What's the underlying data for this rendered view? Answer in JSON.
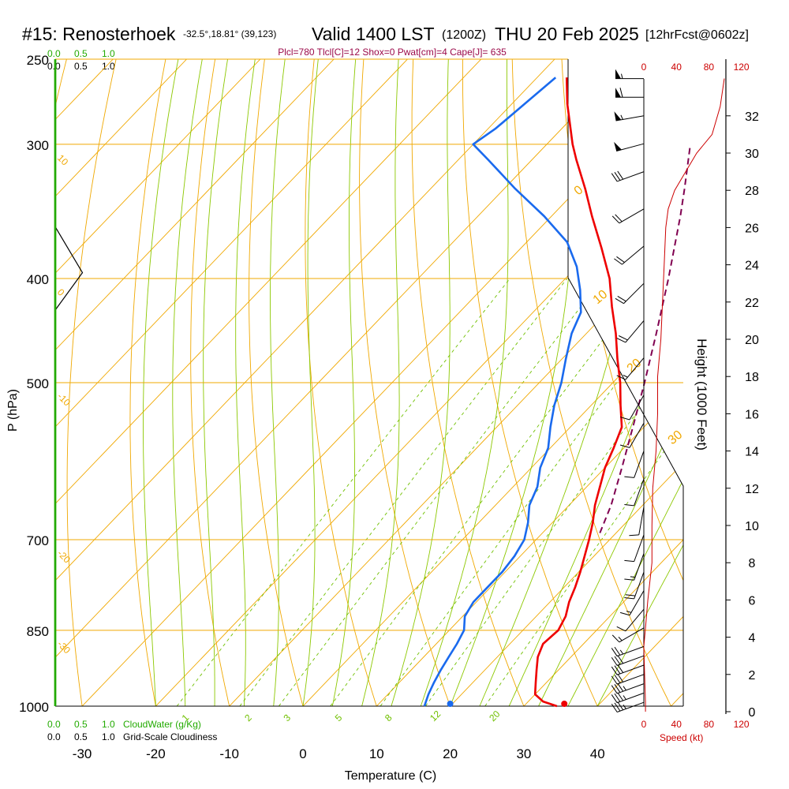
{
  "header": {
    "station": "#15: Renosterhoek",
    "location": "-32.5°,18.81° (39,123)",
    "valid": "Valid 1400 LST",
    "zulu": "(1200Z)",
    "date": "THU 20 Feb 2025",
    "forecast": "[12hrFcst@0602z]"
  },
  "indices_line": "Plcl=780 Tlcl[C]=12 Shox=0 Pwat[cm]=4 Cape[J]= 635",
  "scale_top_green": [
    "0.0",
    "0.5",
    "1.0"
  ],
  "scale_top_black": [
    "0.0",
    "0.5",
    "1.0"
  ],
  "cloudwater_legend": {
    "ticks": [
      "0.0",
      "0.5",
      "1.0"
    ],
    "label": "CloudWater (g/Kg)"
  },
  "cloudiness_legend": {
    "ticks": [
      "0.0",
      "0.5",
      "1.0"
    ],
    "label": "Grid-Scale Cloudiness"
  },
  "wind_speed_ticks": [
    "0",
    "40",
    "80",
    "120"
  ],
  "wind_speed_label": "Speed (kt)",
  "colors": {
    "temperature": "#ee0000",
    "dewpoint": "#1a6aee",
    "parcel": "#800050",
    "isotherm": "#f0a800",
    "dry_adiabat": "#f0a800",
    "moist_adiabat": "#8cc800",
    "mixing_ratio": "#70c000",
    "cloud": "#22aa00",
    "wind_speed": "#cc0000"
  },
  "chart_data": {
    "type": "line",
    "chart_kind": "skew-T log-P sounding",
    "xlabel": "Temperature (C)",
    "ylabel": "P (hPa)",
    "y2label": "Height (1000 Feet)",
    "x_ticks": [
      -30,
      -20,
      -10,
      0,
      10,
      20,
      30,
      40
    ],
    "p_ticks": [
      250,
      300,
      400,
      500,
      700,
      850,
      1000
    ],
    "height_ticks": [
      0,
      2,
      4,
      6,
      8,
      10,
      12,
      14,
      16,
      18,
      20,
      22,
      24,
      26,
      28,
      30,
      32
    ],
    "isotherm_labels": [
      "10",
      "0",
      "-10",
      "-20",
      "-30"
    ],
    "dry_adiabat_labels": [
      "0",
      "10",
      "20",
      "30"
    ],
    "mixing_ratio_labels": [
      "1",
      "2",
      "3",
      "5",
      "8",
      "12",
      "20"
    ],
    "series": [
      {
        "name": "Temperature",
        "points": [
          [
            1000,
            34.5
          ],
          [
            990,
            32.0
          ],
          [
            975,
            30.0
          ],
          [
            950,
            28.5
          ],
          [
            925,
            27.0
          ],
          [
            900,
            25.5
          ],
          [
            875,
            24.5
          ],
          [
            850,
            24.8
          ],
          [
            825,
            24.0
          ],
          [
            800,
            22.6
          ],
          [
            775,
            21.5
          ],
          [
            750,
            20.2
          ],
          [
            700,
            17.2
          ],
          [
            675,
            15.5
          ],
          [
            650,
            13.5
          ],
          [
            600,
            10.0
          ],
          [
            575,
            8.6
          ],
          [
            550,
            7.0
          ],
          [
            525,
            4.0
          ],
          [
            500,
            1.0
          ],
          [
            475,
            -2.5
          ],
          [
            450,
            -6.0
          ],
          [
            425,
            -10.0
          ],
          [
            400,
            -14.0
          ],
          [
            375,
            -19.0
          ],
          [
            350,
            -24.5
          ],
          [
            330,
            -29.0
          ],
          [
            310,
            -34.0
          ],
          [
            300,
            -36.5
          ],
          [
            275,
            -42.5
          ],
          [
            260,
            -46.0
          ]
        ]
      },
      {
        "name": "Dewpoint",
        "points": [
          [
            1000,
            16.5
          ],
          [
            975,
            15.5
          ],
          [
            950,
            14.7
          ],
          [
            925,
            14.0
          ],
          [
            900,
            13.4
          ],
          [
            875,
            12.8
          ],
          [
            850,
            12.0
          ],
          [
            825,
            10.3
          ],
          [
            800,
            9.6
          ],
          [
            775,
            9.6
          ],
          [
            750,
            9.6
          ],
          [
            725,
            9.2
          ],
          [
            700,
            8.4
          ],
          [
            675,
            6.7
          ],
          [
            650,
            4.6
          ],
          [
            625,
            3.3
          ],
          [
            600,
            1.2
          ],
          [
            575,
            -0.3
          ],
          [
            550,
            -2.7
          ],
          [
            525,
            -5.0
          ],
          [
            500,
            -7.0
          ],
          [
            475,
            -9.5
          ],
          [
            450,
            -12.0
          ],
          [
            430,
            -13.5
          ],
          [
            410,
            -16.5
          ],
          [
            390,
            -20.0
          ],
          [
            370,
            -24.5
          ],
          [
            350,
            -31.0
          ],
          [
            330,
            -38.5
          ],
          [
            310,
            -46.0
          ],
          [
            300,
            -50.0
          ],
          [
            290,
            -49.0
          ],
          [
            280,
            -48.5
          ],
          [
            260,
            -47.5
          ]
        ]
      },
      {
        "name": "Parcel",
        "points": [
          [
            690,
            17.8
          ],
          [
            650,
            15.7
          ],
          [
            600,
            12.3
          ],
          [
            550,
            8.5
          ],
          [
            500,
            4.3
          ],
          [
            450,
            -0.5
          ],
          [
            400,
            -6.0
          ],
          [
            350,
            -12.5
          ],
          [
            330,
            -15.5
          ],
          [
            300,
            -20.5
          ]
        ]
      }
    ],
    "surface_temperature": 35.5,
    "surface_dewpoint": 20.0,
    "wind_speed_axis": [
      0,
      120
    ],
    "wind_speed_profile": [
      [
        0.0,
        2
      ],
      [
        0.5,
        2
      ],
      [
        2.0,
        1
      ],
      [
        3.5,
        0
      ],
      [
        4.5,
        2
      ],
      [
        6.0,
        5
      ],
      [
        8.0,
        10
      ],
      [
        10.0,
        10
      ],
      [
        12.0,
        11
      ],
      [
        14.0,
        15
      ],
      [
        16.0,
        17
      ],
      [
        18.0,
        17
      ],
      [
        20.0,
        21
      ],
      [
        22.0,
        23
      ],
      [
        24.0,
        25
      ],
      [
        26.0,
        27
      ],
      [
        27.0,
        30
      ],
      [
        28.0,
        38
      ],
      [
        30.0,
        65
      ],
      [
        31.0,
        84
      ],
      [
        32.5,
        94
      ],
      [
        34.0,
        99
      ]
    ],
    "wind_barbs": [
      {
        "h": 0.5,
        "dir": 250,
        "spd": 35
      },
      {
        "h": 1.0,
        "dir": 250,
        "spd": 35
      },
      {
        "h": 1.5,
        "dir": 250,
        "spd": 35
      },
      {
        "h": 2.0,
        "dir": 250,
        "spd": 30
      },
      {
        "h": 2.5,
        "dir": 250,
        "spd": 30
      },
      {
        "h": 3.0,
        "dir": 250,
        "spd": 30
      },
      {
        "h": 3.5,
        "dir": 250,
        "spd": 25
      },
      {
        "h": 4.5,
        "dir": 240,
        "spd": 15
      },
      {
        "h": 5.5,
        "dir": 220,
        "spd": 10
      },
      {
        "h": 6.5,
        "dir": 210,
        "spd": 15
      },
      {
        "h": 7.5,
        "dir": 200,
        "spd": 20
      },
      {
        "h": 8.5,
        "dir": 200,
        "spd": 15
      },
      {
        "h": 9.5,
        "dir": 200,
        "spd": 10
      },
      {
        "h": 11,
        "dir": 190,
        "spd": 10
      },
      {
        "h": 12.5,
        "dir": 200,
        "spd": 10
      },
      {
        "h": 14,
        "dir": 200,
        "spd": 10
      },
      {
        "h": 15.5,
        "dir": 210,
        "spd": 10
      },
      {
        "h": 17,
        "dir": 210,
        "spd": 10
      },
      {
        "h": 19,
        "dir": 220,
        "spd": 15
      },
      {
        "h": 21,
        "dir": 220,
        "spd": 20
      },
      {
        "h": 23,
        "dir": 225,
        "spd": 20
      },
      {
        "h": 25,
        "dir": 230,
        "spd": 20
      },
      {
        "h": 27,
        "dir": 240,
        "spd": 20
      },
      {
        "h": 29,
        "dir": 250,
        "spd": 30
      },
      {
        "h": 30.5,
        "dir": 255,
        "spd": 50
      },
      {
        "h": 32,
        "dir": 260,
        "spd": 55
      },
      {
        "h": 33,
        "dir": 270,
        "spd": 60
      },
      {
        "h": 34,
        "dir": 270,
        "spd": 55
      }
    ],
    "cloud_profile": [
      [
        250,
        0
      ],
      [
        1000,
        0
      ]
    ],
    "cloudiness_profile": [
      [
        250,
        0
      ],
      [
        358,
        0
      ],
      [
        395,
        0.5
      ],
      [
        428,
        0
      ],
      [
        1000,
        0
      ]
    ]
  }
}
